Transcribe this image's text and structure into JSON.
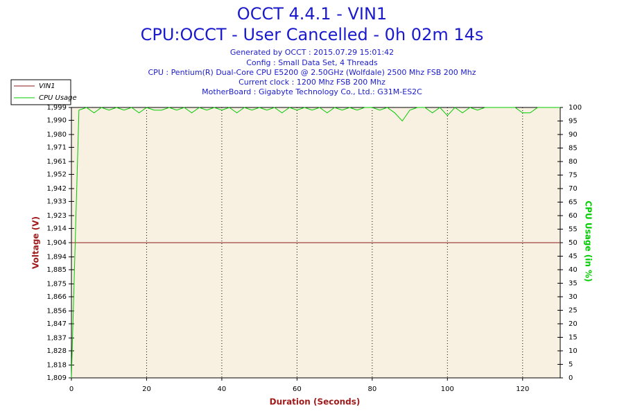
{
  "chart_data": {
    "type": "line",
    "title": "OCCT 4.4.1 - VIN1",
    "subtitle": "CPU:OCCT - User Cancelled - 0h 02m 14s",
    "info": [
      "Generated by OCCT : 2015.07.29 15:01:42",
      "Config : Small Data Set, 4 Threads",
      "CPU : Pentium(R) Dual-Core CPU E5200 @ 2.50GHz (Wolfdale) 2500 Mhz FSB 200 Mhz",
      "Current clock : 1200 Mhz FSB 200 Mhz",
      "MotherBoard : Gigabyte Technology Co., Ltd.: G31M-ES2C"
    ],
    "x_label": "Duration (Seconds)",
    "y_label": "Voltage (V)",
    "y2_label": "CPU Usage (in %)",
    "legend": "upper left",
    "grid": "x",
    "xlim": [
      0,
      130
    ],
    "xticks": [
      0,
      20,
      40,
      60,
      80,
      100,
      120
    ],
    "ylim": [
      1.809,
      1.999
    ],
    "yticks": [
      {
        "value": 1.809,
        "label": "1,809"
      },
      {
        "value": 1.818,
        "label": "1,818"
      },
      {
        "value": 1.828,
        "label": "1,828"
      },
      {
        "value": 1.837,
        "label": "1,837"
      },
      {
        "value": 1.847,
        "label": "1,847"
      },
      {
        "value": 1.856,
        "label": "1,856"
      },
      {
        "value": 1.866,
        "label": "1,866"
      },
      {
        "value": 1.875,
        "label": "1,875"
      },
      {
        "value": 1.885,
        "label": "1,885"
      },
      {
        "value": 1.894,
        "label": "1,894"
      },
      {
        "value": 1.904,
        "label": "1,904"
      },
      {
        "value": 1.914,
        "label": "1,914"
      },
      {
        "value": 1.923,
        "label": "1,923"
      },
      {
        "value": 1.933,
        "label": "1,933"
      },
      {
        "value": 1.942,
        "label": "1,942"
      },
      {
        "value": 1.952,
        "label": "1,952"
      },
      {
        "value": 1.961,
        "label": "1,961"
      },
      {
        "value": 1.971,
        "label": "1,971"
      },
      {
        "value": 1.98,
        "label": "1,980"
      },
      {
        "value": 1.99,
        "label": "1,990"
      },
      {
        "value": 1.999,
        "label": "1,999"
      }
    ],
    "y2lim": [
      0,
      100
    ],
    "y2ticks": [
      0,
      5,
      10,
      15,
      20,
      25,
      30,
      35,
      40,
      45,
      50,
      55,
      60,
      65,
      70,
      75,
      80,
      85,
      90,
      95,
      100
    ],
    "x": [
      0,
      2,
      4,
      6,
      8,
      10,
      12,
      14,
      16,
      18,
      20,
      22,
      24,
      26,
      28,
      30,
      32,
      34,
      36,
      38,
      40,
      42,
      44,
      46,
      48,
      50,
      52,
      54,
      56,
      58,
      60,
      62,
      64,
      66,
      68,
      70,
      72,
      74,
      76,
      78,
      80,
      82,
      84,
      86,
      88,
      90,
      92,
      94,
      96,
      98,
      100,
      102,
      104,
      106,
      108,
      110,
      112,
      114,
      116,
      118,
      120,
      122,
      124,
      126,
      128,
      130
    ],
    "series": [
      {
        "name": "VIN1",
        "color": "#8b1a1a",
        "values": [
          1.904,
          1.904,
          1.904,
          1.904,
          1.904,
          1.904,
          1.904,
          1.904,
          1.904,
          1.904,
          1.904,
          1.904,
          1.904,
          1.904,
          1.904,
          1.904,
          1.904,
          1.904,
          1.904,
          1.904,
          1.904,
          1.904,
          1.904,
          1.904,
          1.904,
          1.904,
          1.904,
          1.904,
          1.904,
          1.904,
          1.904,
          1.904,
          1.904,
          1.904,
          1.904,
          1.904,
          1.904,
          1.904,
          1.904,
          1.904,
          1.904,
          1.904,
          1.904,
          1.904,
          1.904,
          1.904,
          1.904,
          1.904,
          1.904,
          1.904,
          1.904,
          1.904,
          1.904,
          1.904,
          1.904,
          1.904,
          1.904,
          1.904,
          1.904,
          1.904,
          1.904,
          1.904,
          1.904,
          1.904,
          1.904,
          1.904
        ]
      },
      {
        "name": "CPU Usage",
        "color": "#00cc00",
        "axis": "y2",
        "values": [
          0,
          99,
          100,
          98,
          100,
          99,
          100,
          99,
          100,
          98,
          100,
          99,
          99,
          100,
          99,
          100,
          98,
          100,
          99,
          100,
          99,
          100,
          98,
          100,
          99,
          100,
          99,
          100,
          98,
          100,
          99,
          100,
          99,
          100,
          98,
          100,
          99,
          100,
          99,
          100,
          100,
          99,
          100,
          98,
          95,
          99,
          100,
          100,
          98,
          100,
          97,
          100,
          98,
          100,
          99,
          100,
          100,
          100,
          100,
          100,
          98,
          98,
          100,
          100,
          100,
          100
        ]
      }
    ]
  }
}
